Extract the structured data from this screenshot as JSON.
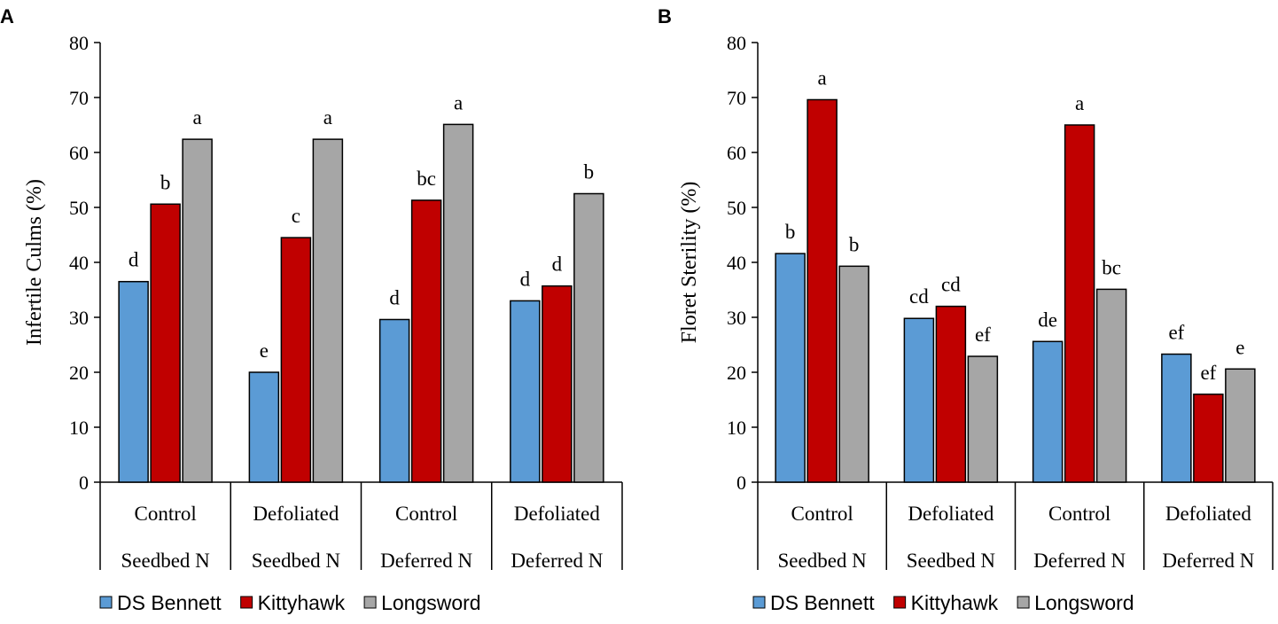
{
  "colors": {
    "DS Bennett": "#5b9bd5",
    "Kittyhawk": "#c00000",
    "Longsword": "#a6a6a6"
  },
  "chart_data": [
    {
      "type": "bar",
      "panel_label": "A",
      "ylabel": "Infertile Culms (%)",
      "ylim": [
        0,
        80
      ],
      "yticks": [
        "0",
        "10",
        "20",
        "30",
        "40",
        "50",
        "60",
        "70",
        "80"
      ],
      "categories": [
        {
          "top": "Control",
          "bottom": "Seedbed N"
        },
        {
          "top": "Defoliated",
          "bottom": "Seedbed N"
        },
        {
          "top": "Control",
          "bottom": "Deferred N"
        },
        {
          "top": "Defoliated",
          "bottom": "Deferred N"
        }
      ],
      "series": [
        {
          "name": "DS Bennett",
          "values": [
            36.5,
            20,
            29.6,
            33
          ],
          "letters": [
            "d",
            "e",
            "d",
            "d"
          ]
        },
        {
          "name": "Kittyhawk",
          "values": [
            50.6,
            44.5,
            51.3,
            35.7
          ],
          "letters": [
            "b",
            "c",
            "bc",
            "d"
          ]
        },
        {
          "name": "Longsword",
          "values": [
            62.4,
            62.4,
            65.1,
            52.5
          ],
          "letters": [
            "a",
            "a",
            "a",
            "b"
          ]
        }
      ],
      "legend": [
        "DS Bennett",
        "Kittyhawk",
        "Longsword"
      ]
    },
    {
      "type": "bar",
      "panel_label": "B",
      "ylabel": "Floret Sterility (%)",
      "ylim": [
        0,
        80
      ],
      "yticks": [
        "0",
        "10",
        "20",
        "30",
        "40",
        "50",
        "60",
        "70",
        "80"
      ],
      "categories": [
        {
          "top": "Control",
          "bottom": "Seedbed N"
        },
        {
          "top": "Defoliated",
          "bottom": "Seedbed N"
        },
        {
          "top": "Control",
          "bottom": "Deferred N"
        },
        {
          "top": "Defoliated",
          "bottom": "Deferred N"
        }
      ],
      "series": [
        {
          "name": "DS Bennett",
          "values": [
            41.6,
            29.8,
            25.6,
            23.3
          ],
          "letters": [
            "b",
            "cd",
            "de",
            "ef"
          ]
        },
        {
          "name": "Kittyhawk",
          "values": [
            69.6,
            32,
            65,
            16
          ],
          "letters": [
            "a",
            "cd",
            "a",
            "ef"
          ]
        },
        {
          "name": "Longsword",
          "values": [
            39.3,
            22.9,
            35.1,
            20.6
          ],
          "letters": [
            "b",
            "ef",
            "bc",
            "e"
          ]
        }
      ],
      "legend": [
        "DS Bennett",
        "Kittyhawk",
        "Longsword"
      ]
    }
  ]
}
